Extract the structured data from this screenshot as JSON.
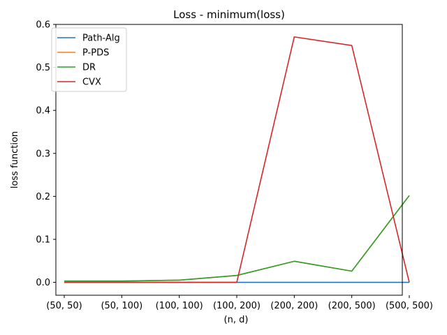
{
  "chart_data": {
    "type": "line",
    "title": "Loss - minimum(loss)",
    "xlabel": "(n, d)",
    "ylabel": "loss function",
    "categories": [
      "(50, 50)",
      "(50, 100)",
      "(100, 100)",
      "(100, 200)",
      "(200, 200)",
      "(200, 500)",
      "(500, 500)"
    ],
    "ylim": [
      -0.03,
      0.6
    ],
    "yticks": [
      0.0,
      0.1,
      0.2,
      0.3,
      0.4,
      0.5,
      0.6
    ],
    "ytick_labels": [
      "0.0",
      "0.1",
      "0.2",
      "0.3",
      "0.4",
      "0.5",
      "0.6"
    ],
    "grid": false,
    "legend": "upper-left",
    "series": [
      {
        "name": "Path-Alg",
        "color": "#1f77b4",
        "values": [
          0.0,
          0.0,
          0.0,
          0.0,
          0.0,
          0.0,
          0.0
        ]
      },
      {
        "name": "P-PDS",
        "color": "#ff7f0e",
        "values": [
          0.003,
          0.003,
          0.005,
          0.016,
          0.049,
          0.026,
          0.202
        ]
      },
      {
        "name": "DR",
        "color": "#2ca02c",
        "values": [
          0.003,
          0.003,
          0.005,
          0.016,
          0.049,
          0.026,
          0.202
        ]
      },
      {
        "name": "CVX",
        "color": "#d62728",
        "values": [
          0.0,
          0.0,
          0.0,
          0.0,
          0.571,
          0.551,
          0.0
        ]
      }
    ]
  }
}
